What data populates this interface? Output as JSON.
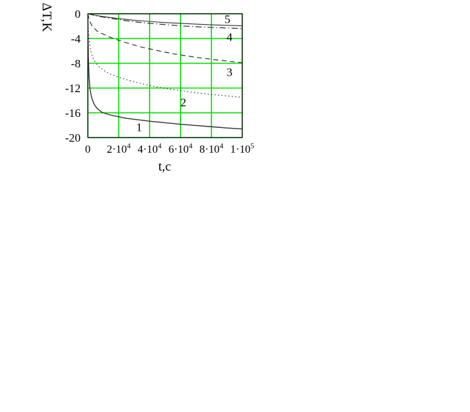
{
  "chart": {
    "y_axis_label": "ΔT,K",
    "x_axis_label": "t,c",
    "grid_color": "#00dd00",
    "frame_color": "#000000",
    "curve_color": "#333333",
    "background_color": "#ffffff",
    "y_ticks": [
      "0",
      "-4",
      "-8",
      "-12",
      "-16",
      "-20"
    ],
    "x_ticks": [
      {
        "base": "0",
        "sup": ""
      },
      {
        "base": "2·10",
        "sup": "4"
      },
      {
        "base": "4·10",
        "sup": "4"
      },
      {
        "base": "6·10",
        "sup": "4"
      },
      {
        "base": "8·10",
        "sup": "4"
      },
      {
        "base": "1·10",
        "sup": "5"
      }
    ]
  },
  "chart_data": {
    "type": "line",
    "title": "",
    "xlabel": "t,c",
    "ylabel": "ΔT,K",
    "xlim": [
      0,
      100000
    ],
    "ylim": [
      -20,
      0
    ],
    "x_tick_values": [
      0,
      20000,
      40000,
      60000,
      80000,
      100000
    ],
    "y_tick_values": [
      0,
      -4,
      -8,
      -12,
      -16,
      -20
    ],
    "grid": true,
    "legend": "numbered labels on plot",
    "series": [
      {
        "name": "curve-1",
        "label": "1",
        "style": "solid",
        "stroke_width": 1.4,
        "dash": "",
        "x": [
          0,
          300,
          800,
          1500,
          2500,
          4000,
          6000,
          9000,
          13000,
          17000,
          20000,
          25000,
          30000,
          40000,
          50000,
          60000,
          70000,
          80000,
          90000,
          100000
        ],
        "y": [
          0,
          -7,
          -10.3,
          -12.4,
          -13.6,
          -14.6,
          -15.3,
          -15.9,
          -16.25,
          -16.5,
          -16.65,
          -16.9,
          -17.05,
          -17.35,
          -17.6,
          -17.85,
          -18.05,
          -18.25,
          -18.45,
          -18.6
        ]
      },
      {
        "name": "curve-2",
        "label": "2",
        "style": "dotted",
        "stroke_width": 1.2,
        "dash": "1.5 3.5",
        "x": [
          0,
          400,
          1000,
          2000,
          3500,
          5000,
          7000,
          10000,
          14000,
          20000,
          27000,
          35000,
          45000,
          55000,
          65000,
          75000,
          85000,
          100000
        ],
        "y": [
          0,
          -2.8,
          -4.6,
          -6.2,
          -7.3,
          -7.9,
          -8.5,
          -9.1,
          -9.7,
          -10.25,
          -10.8,
          -11.3,
          -11.85,
          -12.25,
          -12.6,
          -12.9,
          -13.15,
          -13.5
        ]
      },
      {
        "name": "curve-3",
        "label": "3",
        "style": "dashed",
        "stroke_width": 1.2,
        "dash": "7 5",
        "x": [
          0,
          1000,
          3000,
          6000,
          10000,
          15000,
          20000,
          27000,
          35000,
          45000,
          55000,
          65000,
          75000,
          85000,
          100000
        ],
        "y": [
          0,
          -1.1,
          -2.1,
          -2.8,
          -3.3,
          -3.85,
          -4.3,
          -4.85,
          -5.4,
          -5.95,
          -6.45,
          -6.85,
          -7.2,
          -7.5,
          -7.9
        ]
      },
      {
        "name": "curve-4",
        "label": "4",
        "style": "dash-dot",
        "stroke_width": 1.2,
        "dash": "9 3.5 1.5 3.5",
        "x": [
          0,
          5000,
          10000,
          20000,
          30000,
          40000,
          50000,
          60000,
          70000,
          80000,
          90000,
          100000
        ],
        "y": [
          0,
          -0.3,
          -0.55,
          -0.95,
          -1.3,
          -1.55,
          -1.75,
          -1.95,
          -2.1,
          -2.2,
          -2.3,
          -2.4
        ]
      },
      {
        "name": "curve-5",
        "label": "5",
        "style": "solid",
        "stroke_width": 1.1,
        "dash": "",
        "x": [
          0,
          5000,
          10000,
          20000,
          30000,
          40000,
          50000,
          60000,
          70000,
          80000,
          90000,
          100000
        ],
        "y": [
          0,
          -0.25,
          -0.45,
          -0.78,
          -1.05,
          -1.25,
          -1.42,
          -1.55,
          -1.67,
          -1.78,
          -1.87,
          -1.95
        ]
      }
    ]
  }
}
